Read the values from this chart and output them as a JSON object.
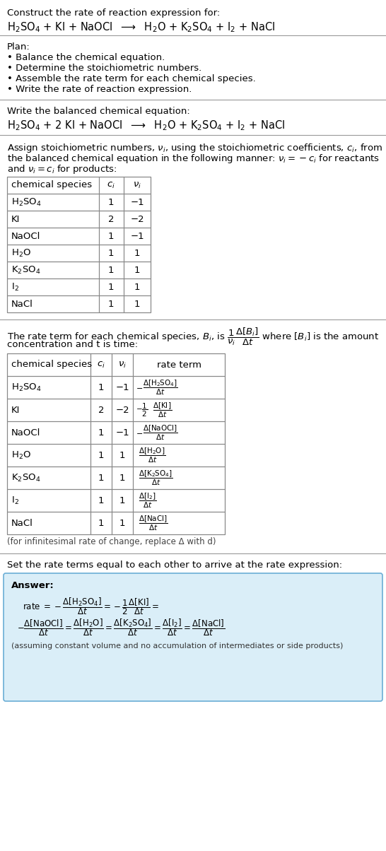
{
  "title_line1": "Construct the rate of reaction expression for:",
  "plan_header": "Plan:",
  "plan_items": [
    "• Balance the chemical equation.",
    "• Determine the stoichiometric numbers.",
    "• Assemble the rate term for each chemical species.",
    "• Write the rate of reaction expression."
  ],
  "balanced_header": "Write the balanced chemical equation:",
  "table1_headers": [
    "chemical species",
    "c_i",
    "ν_i"
  ],
  "table1_rows": [
    [
      "H_2SO_4",
      "1",
      "−1"
    ],
    [
      "KI",
      "2",
      "−2"
    ],
    [
      "NaOCl",
      "1",
      "−1"
    ],
    [
      "H_2O",
      "1",
      "1"
    ],
    [
      "K_2SO_4",
      "1",
      "1"
    ],
    [
      "I_2",
      "1",
      "1"
    ],
    [
      "NaCl",
      "1",
      "1"
    ]
  ],
  "table2_headers": [
    "chemical species",
    "c_i",
    "ν_i",
    "rate term"
  ],
  "table2_rows": [
    [
      "H_2SO_4",
      "1",
      "−1",
      "-delta_H2SO4"
    ],
    [
      "KI",
      "2",
      "−2",
      "-half_delta_KI"
    ],
    [
      "NaOCl",
      "1",
      "−1",
      "-delta_NaOCl"
    ],
    [
      "H_2O",
      "1",
      "1",
      "delta_H2O"
    ],
    [
      "K_2SO_4",
      "1",
      "1",
      "delta_K2SO4"
    ],
    [
      "I_2",
      "1",
      "1",
      "delta_I2"
    ],
    [
      "NaCl",
      "1",
      "1",
      "delta_NaCl"
    ]
  ],
  "infinitesimal_note": "(for infinitesimal rate of change, replace Δ with d)",
  "set_equal_text": "Set the rate terms equal to each other to arrive at the rate expression:",
  "answer_bg_color": "#daeef8",
  "answer_border_color": "#6baed6",
  "bg_color": "#ffffff",
  "text_color": "#000000",
  "font_size": 9.5,
  "title_font_size": 10.5
}
